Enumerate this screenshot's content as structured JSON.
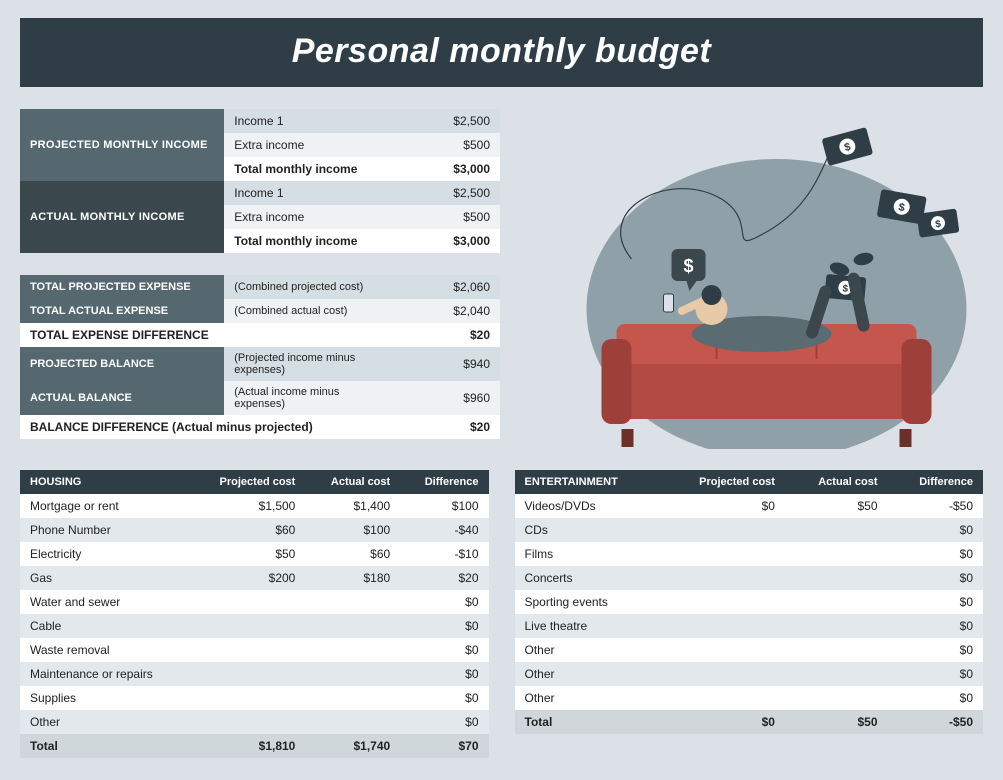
{
  "colors": {
    "page_bg": "#dce1e8",
    "header_bg": "#2f3e46",
    "header_text": "#ffffff",
    "block_hdr_bg": "#556870",
    "block_hdr_dark_bg": "#3a474d",
    "row_bg": "#d5dee2",
    "row_alt_bg": "#eef2f4",
    "white": "#ffffff",
    "detail_even_bg": "#e3e8ec",
    "detail_total_bg": "#cfd7db",
    "couch_color": "#b04a42",
    "person_color": "#3a474d",
    "blob_color": "#8fa0a8"
  },
  "title": "Personal monthly budget",
  "income": {
    "projected_label": "PROJECTED MONTHLY INCOME",
    "actual_label": "ACTUAL MONTHLY INCOME",
    "rows": {
      "income1_label": "Income 1",
      "extra_label": "Extra income",
      "total_label": "Total monthly income"
    },
    "projected": {
      "income1": "$2,500",
      "extra": "$500",
      "total": "$3,000"
    },
    "actual": {
      "income1": "$2,500",
      "extra": "$500",
      "total": "$3,000"
    }
  },
  "expense_summary": {
    "rows": [
      {
        "hdr": "TOTAL PROJECTED EXPENSE",
        "note": "(Combined projected cost)",
        "val": "$2,060",
        "alt": false
      },
      {
        "hdr": "TOTAL ACTUAL EXPENSE",
        "note": "(Combined actual cost)",
        "val": "$2,040",
        "alt": true
      }
    ],
    "diff_label": "TOTAL EXPENSE DIFFERENCE",
    "diff_val": "$20",
    "balance_rows": [
      {
        "hdr": "PROJECTED BALANCE",
        "note": "(Projected income minus expenses)",
        "val": "$940",
        "alt": false
      },
      {
        "hdr": "ACTUAL BALANCE",
        "note": "(Actual income minus expenses)",
        "val": "$960",
        "alt": true
      }
    ],
    "balance_diff_label": "BALANCE DIFFERENCE (Actual minus projected)",
    "balance_diff_val": "$20"
  },
  "detail_headers": {
    "projected": "Projected cost",
    "actual": "Actual cost",
    "diff": "Difference",
    "total": "Total"
  },
  "housing": {
    "title": "HOUSING",
    "rows": [
      {
        "name": "Mortgage or rent",
        "proj": "$1,500",
        "act": "$1,400",
        "diff": "$100"
      },
      {
        "name": "Phone Number",
        "proj": "$60",
        "act": "$100",
        "diff": "-$40"
      },
      {
        "name": "Electricity",
        "proj": "$50",
        "act": "$60",
        "diff": "-$10"
      },
      {
        "name": "Gas",
        "proj": "$200",
        "act": "$180",
        "diff": "$20"
      },
      {
        "name": "Water and sewer",
        "proj": "",
        "act": "",
        "diff": "$0"
      },
      {
        "name": "Cable",
        "proj": "",
        "act": "",
        "diff": "$0"
      },
      {
        "name": "Waste removal",
        "proj": "",
        "act": "",
        "diff": "$0"
      },
      {
        "name": "Maintenance or repairs",
        "proj": "",
        "act": "",
        "diff": "$0"
      },
      {
        "name": "Supplies",
        "proj": "",
        "act": "",
        "diff": "$0"
      },
      {
        "name": "Other",
        "proj": "",
        "act": "",
        "diff": "$0"
      }
    ],
    "total": {
      "proj": "$1,810",
      "act": "$1,740",
      "diff": "$70"
    }
  },
  "entertainment": {
    "title": "ENTERTAINMENT",
    "rows": [
      {
        "name": "Videos/DVDs",
        "proj": "$0",
        "act": "$50",
        "diff": "-$50"
      },
      {
        "name": "CDs",
        "proj": "",
        "act": "",
        "diff": "$0"
      },
      {
        "name": "Films",
        "proj": "",
        "act": "",
        "diff": "$0"
      },
      {
        "name": "Concerts",
        "proj": "",
        "act": "",
        "diff": "$0"
      },
      {
        "name": "Sporting events",
        "proj": "",
        "act": "",
        "diff": "$0"
      },
      {
        "name": "Live theatre",
        "proj": "",
        "act": "",
        "diff": "$0"
      },
      {
        "name": "Other",
        "proj": "",
        "act": "",
        "diff": "$0"
      },
      {
        "name": "Other",
        "proj": "",
        "act": "",
        "diff": "$0"
      },
      {
        "name": "Other",
        "proj": "",
        "act": "",
        "diff": "$0"
      }
    ],
    "total": {
      "proj": "$0",
      "act": "$50",
      "diff": "-$50"
    }
  }
}
